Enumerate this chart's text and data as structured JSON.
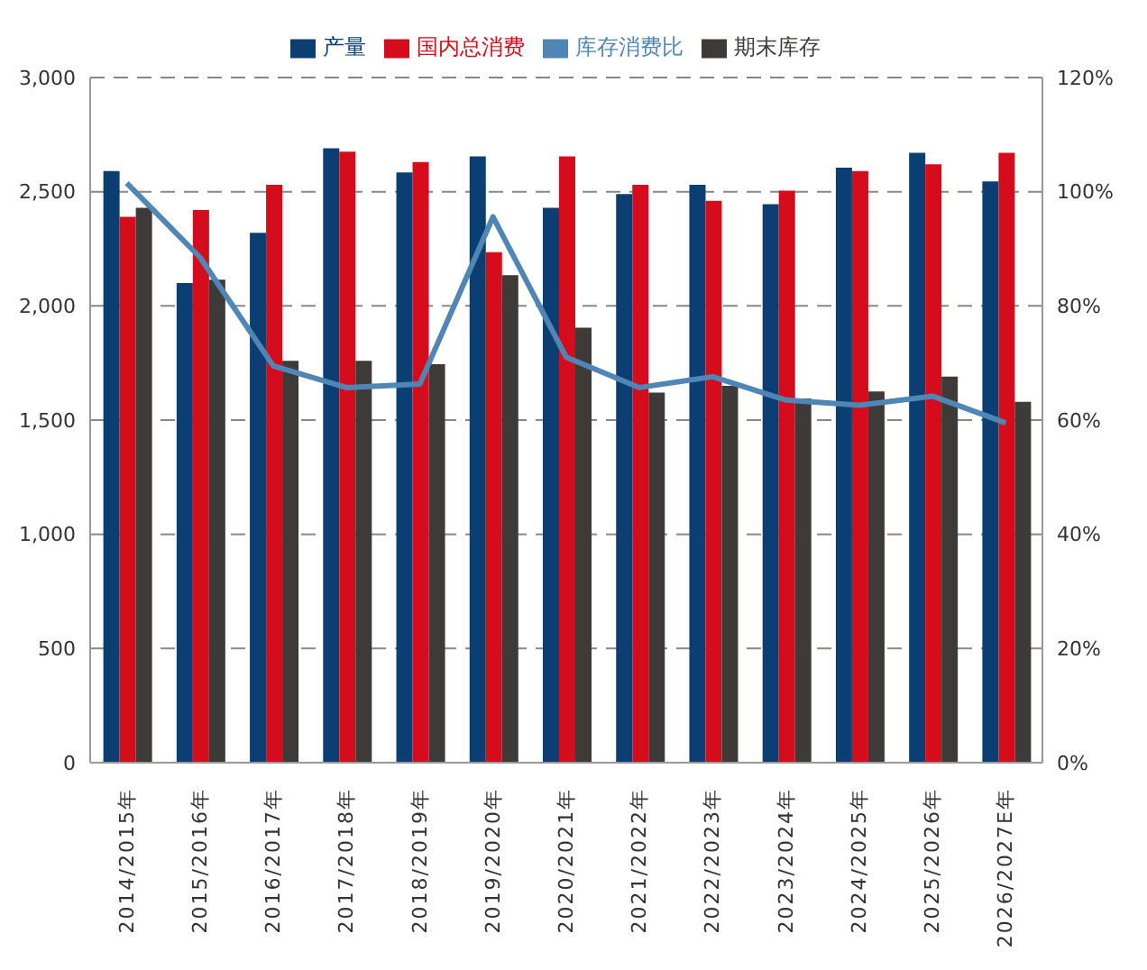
{
  "chart_data": {
    "type": "bar",
    "categories": [
      "2014/2015年",
      "2015/2016年",
      "2016/2017年",
      "2017/2018年",
      "2018/2019年",
      "2019/2020年",
      "2020/2021年",
      "2021/2022年",
      "2022/2023年",
      "2023/2024年",
      "2024/2025年",
      "2025/2026年",
      "2026/2027E年"
    ],
    "series": [
      {
        "name": "产量",
        "color": "#0b3f73",
        "values": [
          2590,
          2100,
          2320,
          2690,
          2585,
          2655,
          2430,
          2490,
          2530,
          2445,
          2605,
          2670,
          2545
        ]
      },
      {
        "name": "国内总消费",
        "color": "#d50c1b",
        "values": [
          2390,
          2420,
          2530,
          2675,
          2630,
          2235,
          2655,
          2530,
          2460,
          2505,
          2590,
          2620,
          2670
        ]
      },
      {
        "name": "期末库存",
        "color": "#3d3a38",
        "values": [
          2430,
          2115,
          1760,
          1760,
          1745,
          2135,
          1905,
          1620,
          1650,
          1595,
          1625,
          1690,
          1580
        ]
      },
      {
        "name": "库存消费比",
        "type": "line",
        "axis": "y2",
        "color": "#4f86b5",
        "values": [
          101.5,
          88.5,
          69.5,
          65.7,
          66.3,
          95.6,
          71,
          65.7,
          67.6,
          63.5,
          62.6,
          64.2,
          59.5
        ]
      }
    ],
    "ylim": [
      0,
      3000
    ],
    "yticks": [
      0,
      500,
      {
        "value": 1000,
        "label": "1,000"
      },
      {
        "value": 1500,
        "label": "1,500"
      },
      {
        "value": 2000,
        "label": "2,000"
      },
      {
        "value": 2500,
        "label": "2,500"
      },
      {
        "value": 3000,
        "label": "3,000"
      }
    ],
    "y2lim": [
      0,
      120
    ],
    "y2ticks": [
      {
        "value": 0,
        "label": "0%"
      },
      {
        "value": 20,
        "label": "20%"
      },
      {
        "value": 40,
        "label": "40%"
      },
      {
        "value": 60,
        "label": "60%"
      },
      {
        "value": 80,
        "label": "80%"
      },
      {
        "value": 100,
        "label": "100%"
      },
      {
        "value": 120,
        "label": "120%"
      }
    ],
    "grid": "y",
    "legend": "top",
    "marker": "none",
    "line_style": "solid"
  }
}
